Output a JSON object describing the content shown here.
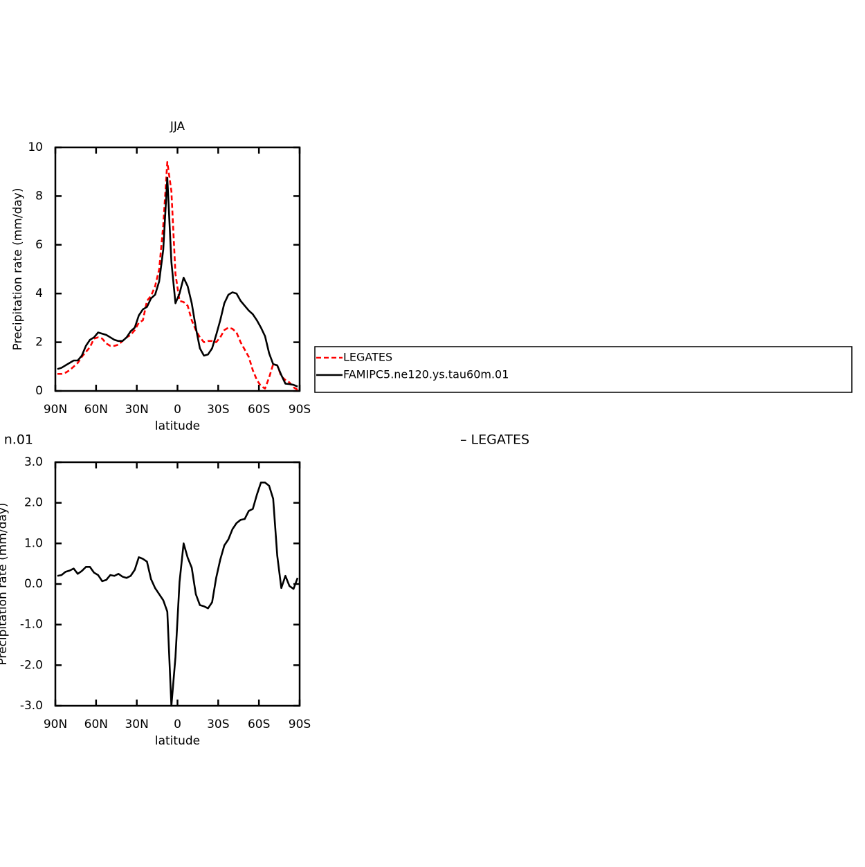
{
  "chart_data": [
    {
      "type": "line",
      "title": "JJA",
      "xlabel": "latitude",
      "ylabel": "Precipitation rate (mm/day)",
      "x": [
        88.5,
        85.5,
        82.5,
        79.5,
        76.5,
        73.5,
        70.5,
        67.5,
        64.5,
        61.5,
        58.5,
        55.5,
        52.5,
        49.5,
        46.5,
        43.5,
        40.5,
        37.5,
        34.5,
        31.5,
        28.5,
        25.5,
        22.5,
        19.5,
        16.5,
        13.5,
        10.5,
        7.5,
        4.5,
        1.5,
        -1.5,
        -4.5,
        -7.5,
        -10.5,
        -13.5,
        -16.5,
        -19.5,
        -22.5,
        -25.5,
        -28.5,
        -31.5,
        -34.5,
        -37.5,
        -40.5,
        -43.5,
        -46.5,
        -49.5,
        -52.5,
        -55.5,
        -58.5,
        -61.5,
        -64.5,
        -67.5,
        -70.5,
        -73.5,
        -76.5,
        -79.5,
        -82.5,
        -85.5,
        -88.5
      ],
      "series": [
        {
          "name": "LEGATES",
          "color": "#ff0000",
          "style": "dashed",
          "values": [
            0.7,
            0.7,
            0.75,
            0.85,
            1.0,
            1.15,
            1.4,
            1.6,
            1.8,
            2.15,
            2.2,
            2.15,
            1.95,
            1.85,
            1.85,
            1.9,
            2.05,
            2.2,
            2.3,
            2.5,
            2.8,
            2.9,
            3.7,
            3.9,
            4.3,
            5.0,
            6.8,
            9.4,
            8.2,
            4.8,
            3.7,
            3.65,
            3.5,
            2.9,
            2.5,
            2.2,
            2.0,
            2.05,
            2.05,
            2.0,
            2.2,
            2.5,
            2.6,
            2.55,
            2.4,
            2.0,
            1.7,
            1.4,
            0.85,
            0.45,
            0.2,
            0.1,
            0.55,
            1.1,
            1.05,
            0.6,
            0.45,
            0.35,
            0.15,
            0.05
          ]
        },
        {
          "name": "FAMIPC5.ne120.ys.tau60m.01",
          "color": "#000000",
          "style": "solid",
          "values": [
            0.9,
            0.95,
            1.05,
            1.15,
            1.25,
            1.25,
            1.45,
            1.85,
            2.1,
            2.2,
            2.4,
            2.35,
            2.3,
            2.2,
            2.1,
            2.05,
            2.05,
            2.2,
            2.45,
            2.6,
            3.1,
            3.35,
            3.45,
            3.8,
            3.95,
            4.5,
            5.8,
            8.75,
            5.3,
            3.6,
            4.0,
            4.65,
            4.3,
            3.6,
            2.6,
            1.75,
            1.45,
            1.5,
            1.75,
            2.3,
            2.9,
            3.6,
            3.95,
            4.05,
            4.0,
            3.7,
            3.5,
            3.3,
            3.15,
            2.9,
            2.6,
            2.25,
            1.55,
            1.1,
            1.05,
            0.65,
            0.3,
            0.28,
            0.25,
            0.18
          ]
        }
      ],
      "xlim": [
        90,
        -90
      ],
      "xticks": [
        {
          "value": 90,
          "label": "90N"
        },
        {
          "value": 60,
          "label": "60N"
        },
        {
          "value": 30,
          "label": "30N"
        },
        0,
        {
          "value": -30,
          "label": "30S"
        },
        {
          "value": -60,
          "label": "60S"
        },
        {
          "value": -90,
          "label": "90S"
        }
      ],
      "ylim": [
        0,
        10
      ],
      "yticks": [
        0,
        2,
        4,
        6,
        8,
        10
      ],
      "legend": "right"
    },
    {
      "type": "line",
      "left_title": "n.01",
      "right_title": "– LEGATES",
      "xlabel": "latitude",
      "ylabel": "Precipitation rate (mm/day)",
      "x": [
        88.5,
        85.5,
        82.5,
        79.5,
        76.5,
        73.5,
        70.5,
        67.5,
        64.5,
        61.5,
        58.5,
        55.5,
        52.5,
        49.5,
        46.5,
        43.5,
        40.5,
        37.5,
        34.5,
        31.5,
        28.5,
        25.5,
        22.5,
        19.5,
        16.5,
        13.5,
        10.5,
        7.5,
        4.5,
        1.5,
        -1.5,
        -4.5,
        -7.5,
        -10.5,
        -13.5,
        -16.5,
        -19.5,
        -22.5,
        -25.5,
        -28.5,
        -31.5,
        -34.5,
        -37.5,
        -40.5,
        -43.5,
        -46.5,
        -49.5,
        -52.5,
        -55.5,
        -58.5,
        -61.5,
        -64.5,
        -67.5,
        -70.5,
        -73.5,
        -76.5,
        -79.5,
        -82.5,
        -85.5,
        -88.5
      ],
      "series": [
        {
          "color": "#000000",
          "style": "solid",
          "values": [
            0.2,
            0.22,
            0.3,
            0.33,
            0.38,
            0.25,
            0.32,
            0.42,
            0.42,
            0.28,
            0.22,
            0.07,
            0.1,
            0.22,
            0.2,
            0.25,
            0.18,
            0.15,
            0.2,
            0.35,
            0.66,
            0.62,
            0.55,
            0.12,
            -0.1,
            -0.25,
            -0.4,
            -0.68,
            -3.0,
            -1.8,
            0.05,
            1.0,
            0.65,
            0.4,
            -0.25,
            -0.52,
            -0.55,
            -0.6,
            -0.45,
            0.15,
            0.6,
            0.95,
            1.1,
            1.35,
            1.5,
            1.58,
            1.6,
            1.8,
            1.85,
            2.2,
            2.5,
            2.5,
            2.42,
            2.1,
            0.7,
            -0.1,
            0.2,
            -0.05,
            -0.12,
            0.15
          ]
        }
      ],
      "xlim": [
        90,
        -90
      ],
      "xticks": [
        {
          "value": 90,
          "label": "90N"
        },
        {
          "value": 60,
          "label": "60N"
        },
        {
          "value": 30,
          "label": "30N"
        },
        0,
        {
          "value": -30,
          "label": "30S"
        },
        {
          "value": -60,
          "label": "60S"
        },
        {
          "value": -90,
          "label": "90S"
        }
      ],
      "ylim": [
        -3,
        3
      ],
      "yticks": [
        {
          "value": -3,
          "label": "-3.0"
        },
        {
          "value": -2,
          "label": "-2.0"
        },
        {
          "value": -1,
          "label": "-1.0"
        },
        {
          "value": 0,
          "label": "0.0"
        },
        {
          "value": 1,
          "label": "1.0"
        },
        {
          "value": 2,
          "label": "2.0"
        },
        {
          "value": 3,
          "label": "3.0"
        }
      ]
    }
  ]
}
